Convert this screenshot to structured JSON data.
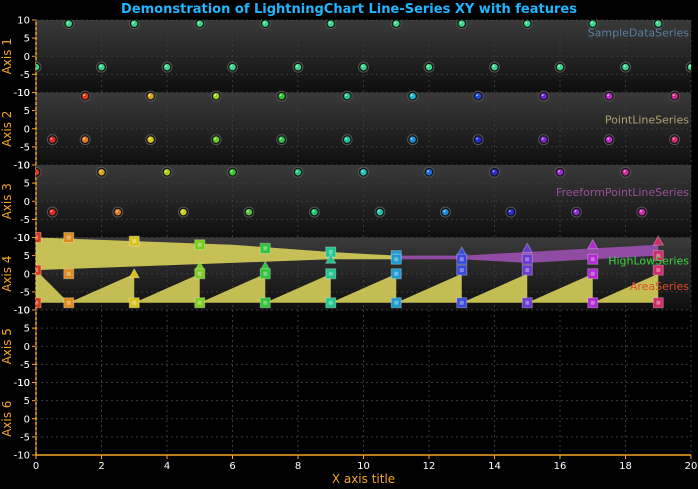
{
  "title": "Demonstration of LightningChart Line-Series XY with features",
  "colors": {
    "background": "#000000",
    "title": "#1fb6ff",
    "axis": "#f5a623",
    "grid": "#3a3a3a",
    "panelTop": "#3a3a3a",
    "panelBottom": "#111111",
    "band": "#d6cf5a",
    "bandPurple": "#9b4fb0"
  },
  "chart_data": {
    "type": "scatter",
    "title": "Demonstration of LightningChart Line-Series XY with features",
    "xlabel": "X axis title",
    "xlim": [
      0,
      20
    ],
    "xticks": [
      0,
      2,
      4,
      6,
      8,
      10,
      12,
      14,
      16,
      18,
      20
    ],
    "grid": true,
    "y_axes": [
      {
        "name": "Axis 1",
        "ylim": [
          -10,
          10
        ],
        "ticks": [
          10,
          5,
          0,
          -5,
          -10
        ]
      },
      {
        "name": "Axis 2",
        "ylim": [
          -10,
          10
        ],
        "ticks": [
          10,
          5,
          0,
          -5,
          -10
        ]
      },
      {
        "name": "Axis 3",
        "ylim": [
          -10,
          10
        ],
        "ticks": [
          10,
          5,
          0,
          -5,
          -10
        ]
      },
      {
        "name": "Axis 4",
        "ylim": [
          -10,
          10
        ],
        "ticks": [
          10,
          5,
          0,
          -5,
          -10
        ]
      },
      {
        "name": "Axis 5",
        "ylim": [
          -10,
          10
        ],
        "ticks": [
          10,
          5,
          0,
          -5,
          -10
        ]
      },
      {
        "name": "Axis 6",
        "ylim": [
          -10,
          10
        ],
        "ticks": [
          10,
          5,
          0,
          -5,
          -10
        ]
      }
    ],
    "series": [
      {
        "name": "SampleDataSeries",
        "axis": 0,
        "color": "#5b7fa6",
        "marker": "sphere",
        "points": [
          {
            "x": 1,
            "y": 9,
            "color": "#3ad48a"
          },
          {
            "x": 3,
            "y": 9,
            "color": "#3ad48a"
          },
          {
            "x": 5,
            "y": 9,
            "color": "#3ad48a"
          },
          {
            "x": 7,
            "y": 9,
            "color": "#3ad48a"
          },
          {
            "x": 9,
            "y": 9,
            "color": "#3ad48a"
          },
          {
            "x": 11,
            "y": 9,
            "color": "#3ad48a"
          },
          {
            "x": 13,
            "y": 9,
            "color": "#3ad48a"
          },
          {
            "x": 15,
            "y": 9,
            "color": "#3ad48a"
          },
          {
            "x": 17,
            "y": 9,
            "color": "#3ad48a"
          },
          {
            "x": 19,
            "y": 9,
            "color": "#3ad48a"
          },
          {
            "x": 0,
            "y": -3,
            "color": "#3ad48a"
          },
          {
            "x": 2,
            "y": -3,
            "color": "#3ad48a"
          },
          {
            "x": 4,
            "y": -3,
            "color": "#3ad48a"
          },
          {
            "x": 6,
            "y": -3,
            "color": "#3ad48a"
          },
          {
            "x": 8,
            "y": -3,
            "color": "#3ad48a"
          },
          {
            "x": 10,
            "y": -3,
            "color": "#3ad48a"
          },
          {
            "x": 12,
            "y": -3,
            "color": "#3ad48a"
          },
          {
            "x": 14,
            "y": -3,
            "color": "#3ad48a"
          },
          {
            "x": 16,
            "y": -3,
            "color": "#3ad48a"
          },
          {
            "x": 18,
            "y": -3,
            "color": "#3ad48a"
          },
          {
            "x": 20,
            "y": -3,
            "color": "#3ad48a"
          }
        ]
      },
      {
        "name": "PointLineSeries",
        "axis": 1,
        "color": "#b0a070",
        "marker": "sphere",
        "points": [
          {
            "x": 1.5,
            "y": 9,
            "color": "#e03a1e"
          },
          {
            "x": 3.5,
            "y": 9,
            "color": "#d8a21a"
          },
          {
            "x": 5.5,
            "y": 9,
            "color": "#9ccc1e"
          },
          {
            "x": 7.5,
            "y": 9,
            "color": "#2ec43a"
          },
          {
            "x": 9.5,
            "y": 9,
            "color": "#20c48c"
          },
          {
            "x": 11.5,
            "y": 9,
            "color": "#1eb6c8"
          },
          {
            "x": 13.5,
            "y": 9,
            "color": "#1e4cd8"
          },
          {
            "x": 15.5,
            "y": 9,
            "color": "#6a2ad0"
          },
          {
            "x": 17.5,
            "y": 9,
            "color": "#c02ad0"
          },
          {
            "x": 19.5,
            "y": 9,
            "color": "#d02a8a"
          },
          {
            "x": 0.5,
            "y": -3,
            "color": "#e02a1e"
          },
          {
            "x": 1.5,
            "y": -3,
            "color": "#e07a1e"
          },
          {
            "x": 3.5,
            "y": -3,
            "color": "#d8c21a"
          },
          {
            "x": 5.5,
            "y": -3,
            "color": "#6acc1e"
          },
          {
            "x": 7.5,
            "y": -3,
            "color": "#2ec44a"
          },
          {
            "x": 9.5,
            "y": -3,
            "color": "#20c4a0"
          },
          {
            "x": 11.5,
            "y": -3,
            "color": "#1e8ad0"
          },
          {
            "x": 13.5,
            "y": -3,
            "color": "#1e2ad8"
          },
          {
            "x": 15.5,
            "y": -3,
            "color": "#7a2ad0"
          },
          {
            "x": 17.5,
            "y": -3,
            "color": "#c02ad0"
          },
          {
            "x": 19.5,
            "y": -3,
            "color": "#d02a6a"
          }
        ]
      },
      {
        "name": "FreeformPointLineSeries",
        "axis": 2,
        "color": "#9a4f9a",
        "marker": "sphere",
        "points": [
          {
            "x": 0,
            "y": 8,
            "color": "#e03a1e"
          },
          {
            "x": 2,
            "y": 8,
            "color": "#d8a21a"
          },
          {
            "x": 4,
            "y": 8,
            "color": "#a8cc1e"
          },
          {
            "x": 6,
            "y": 8,
            "color": "#40c43a"
          },
          {
            "x": 8,
            "y": 8,
            "color": "#20c47a"
          },
          {
            "x": 10,
            "y": 8,
            "color": "#1ec4b8"
          },
          {
            "x": 12,
            "y": 8,
            "color": "#1e6ad8"
          },
          {
            "x": 14,
            "y": 8,
            "color": "#2a2ad0"
          },
          {
            "x": 16,
            "y": 8,
            "color": "#9a2ad0"
          },
          {
            "x": 18,
            "y": 8,
            "color": "#d02a9a"
          },
          {
            "x": 0.5,
            "y": -3,
            "color": "#e02a1e"
          },
          {
            "x": 2.5,
            "y": -3,
            "color": "#e07a1e"
          },
          {
            "x": 4.5,
            "y": -3,
            "color": "#c8cc1e"
          },
          {
            "x": 6.5,
            "y": -3,
            "color": "#5ac43a"
          },
          {
            "x": 8.5,
            "y": -3,
            "color": "#20c46a"
          },
          {
            "x": 10.5,
            "y": -3,
            "color": "#1ec4a8"
          },
          {
            "x": 12.5,
            "y": -3,
            "color": "#1e8ad8"
          },
          {
            "x": 14.5,
            "y": -3,
            "color": "#2a2ad0"
          },
          {
            "x": 16.5,
            "y": -3,
            "color": "#8a2ad0"
          },
          {
            "x": 18.5,
            "y": -3,
            "color": "#d02ab0"
          }
        ]
      },
      {
        "name": "HighLowSeries",
        "axis": 3,
        "color": "#3ad43a",
        "type": "band",
        "points": [
          {
            "x": 0,
            "high": 10,
            "low": 1
          },
          {
            "x": 3,
            "high": 9,
            "low": 2
          },
          {
            "x": 6,
            "high": 8,
            "low": 3
          },
          {
            "x": 9,
            "high": 6,
            "low": 4
          },
          {
            "x": 11,
            "high": 5,
            "low": 4
          },
          {
            "x": 13,
            "high": 5,
            "low": 4
          },
          {
            "x": 15,
            "high": 6,
            "low": 3
          },
          {
            "x": 17,
            "high": 7,
            "low": 4
          },
          {
            "x": 19,
            "high": 8,
            "low": 5
          }
        ]
      },
      {
        "name": "AreaSeries",
        "axis": 3,
        "color": "#e04a2a",
        "type": "area",
        "baseline": -8,
        "points": [
          {
            "x": 0,
            "y": -8
          },
          {
            "x": 0,
            "y": 1
          },
          {
            "x": 1,
            "y": -8
          },
          {
            "x": 3,
            "y": 0
          },
          {
            "x": 3,
            "y": -8
          },
          {
            "x": 5,
            "y": 0
          },
          {
            "x": 5,
            "y": -8
          },
          {
            "x": 7,
            "y": 0
          },
          {
            "x": 7,
            "y": -8
          },
          {
            "x": 9,
            "y": 0
          },
          {
            "x": 9,
            "y": -8
          },
          {
            "x": 11,
            "y": 0
          },
          {
            "x": 11,
            "y": -8
          },
          {
            "x": 13,
            "y": 0
          },
          {
            "x": 13,
            "y": -8
          },
          {
            "x": 15,
            "y": 0
          },
          {
            "x": 15,
            "y": -8
          },
          {
            "x": 17,
            "y": 0
          },
          {
            "x": 17,
            "y": -8
          },
          {
            "x": 19,
            "y": 0
          },
          {
            "x": 19,
            "y": -8
          }
        ]
      }
    ],
    "axis4_markers": [
      {
        "x": 0,
        "y": 10,
        "shape": "square",
        "color": "#e03a1e"
      },
      {
        "x": 0,
        "y": 1,
        "shape": "square",
        "color": "#e03a1e"
      },
      {
        "x": 0,
        "y": -8,
        "shape": "square",
        "color": "#e03a1e"
      },
      {
        "x": 1,
        "y": 10,
        "shape": "square",
        "color": "#e08a1e"
      },
      {
        "x": 1,
        "y": 0,
        "shape": "square",
        "color": "#e08a1e"
      },
      {
        "x": 1,
        "y": -8,
        "shape": "square",
        "color": "#e08a1e"
      },
      {
        "x": 3,
        "y": 9,
        "shape": "square",
        "color": "#d8c21a"
      },
      {
        "x": 3,
        "y": 0,
        "shape": "triangle",
        "color": "#d8c21a"
      },
      {
        "x": 3,
        "y": -8,
        "shape": "square",
        "color": "#d8c21a"
      },
      {
        "x": 5,
        "y": 8,
        "shape": "square",
        "color": "#7acc1e"
      },
      {
        "x": 5,
        "y": 2,
        "shape": "triangle",
        "color": "#7acc1e"
      },
      {
        "x": 5,
        "y": 0,
        "shape": "square",
        "color": "#7acc1e"
      },
      {
        "x": 5,
        "y": -8,
        "shape": "square",
        "color": "#7acc1e"
      },
      {
        "x": 7,
        "y": 7,
        "shape": "square",
        "color": "#2ec43a"
      },
      {
        "x": 7,
        "y": 2,
        "shape": "triangle",
        "color": "#2ec43a"
      },
      {
        "x": 7,
        "y": 0,
        "shape": "square",
        "color": "#2ec43a"
      },
      {
        "x": 7,
        "y": -8,
        "shape": "square",
        "color": "#2ec43a"
      },
      {
        "x": 9,
        "y": 6,
        "shape": "square",
        "color": "#20c48c"
      },
      {
        "x": 9,
        "y": 4,
        "shape": "triangle",
        "color": "#20c48c"
      },
      {
        "x": 9,
        "y": 0,
        "shape": "square",
        "color": "#20c48c"
      },
      {
        "x": 9,
        "y": -8,
        "shape": "square",
        "color": "#20c48c"
      },
      {
        "x": 11,
        "y": 5,
        "shape": "square",
        "color": "#1e9ad0"
      },
      {
        "x": 11,
        "y": 4,
        "shape": "square",
        "color": "#1e9ad0"
      },
      {
        "x": 11,
        "y": 0,
        "shape": "square",
        "color": "#1e9ad0"
      },
      {
        "x": 11,
        "y": -8,
        "shape": "square",
        "color": "#1e9ad0"
      },
      {
        "x": 13,
        "y": 6,
        "shape": "triangle",
        "color": "#3a4ad8"
      },
      {
        "x": 13,
        "y": 4,
        "shape": "square",
        "color": "#3a4ad8"
      },
      {
        "x": 13,
        "y": 1,
        "shape": "square",
        "color": "#3a4ad8"
      },
      {
        "x": 13,
        "y": -8,
        "shape": "square",
        "color": "#3a4ad8"
      },
      {
        "x": 15,
        "y": 7,
        "shape": "triangle",
        "color": "#6a3ad0"
      },
      {
        "x": 15,
        "y": 4,
        "shape": "square",
        "color": "#6a3ad0"
      },
      {
        "x": 15,
        "y": 1,
        "shape": "square",
        "color": "#6a3ad0"
      },
      {
        "x": 15,
        "y": -8,
        "shape": "square",
        "color": "#6a3ad0"
      },
      {
        "x": 17,
        "y": 8,
        "shape": "triangle",
        "color": "#b02ad0"
      },
      {
        "x": 17,
        "y": 4,
        "shape": "square",
        "color": "#b02ad0"
      },
      {
        "x": 17,
        "y": 0,
        "shape": "square",
        "color": "#b02ad0"
      },
      {
        "x": 17,
        "y": -8,
        "shape": "square",
        "color": "#b02ad0"
      },
      {
        "x": 19,
        "y": 9,
        "shape": "triangle",
        "color": "#d02a6a"
      },
      {
        "x": 19,
        "y": 5,
        "shape": "square",
        "color": "#d02a6a"
      },
      {
        "x": 19,
        "y": 1,
        "shape": "square",
        "color": "#d02a6a"
      },
      {
        "x": 19,
        "y": -8,
        "shape": "square",
        "color": "#d02a6a"
      }
    ]
  }
}
